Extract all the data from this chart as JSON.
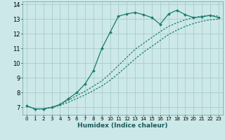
{
  "title": "",
  "xlabel": "Humidex (Indice chaleur)",
  "background_color": "#cce8e8",
  "grid_color": "#aacccc",
  "line_color": "#1a7a6e",
  "xlim": [
    -0.5,
    23.5
  ],
  "ylim": [
    6.5,
    14.2
  ],
  "yticks": [
    7,
    8,
    9,
    10,
    11,
    12,
    13,
    14
  ],
  "xticks": [
    0,
    1,
    2,
    3,
    4,
    5,
    6,
    7,
    8,
    9,
    10,
    11,
    12,
    13,
    14,
    15,
    16,
    17,
    18,
    19,
    20,
    21,
    22,
    23
  ],
  "series1_x": [
    0,
    1,
    2,
    3,
    4,
    5,
    6,
    7,
    8,
    9,
    10,
    11,
    12,
    13,
    14,
    15,
    16,
    17,
    18,
    19,
    20,
    21,
    22,
    23
  ],
  "series1_y": [
    7.1,
    6.9,
    6.9,
    7.0,
    7.2,
    7.6,
    8.0,
    8.6,
    9.5,
    11.0,
    12.1,
    13.2,
    13.35,
    13.45,
    13.3,
    13.1,
    12.65,
    13.35,
    13.6,
    13.3,
    13.1,
    13.15,
    13.25,
    13.1
  ],
  "series2_x": [
    0,
    1,
    2,
    3,
    4,
    5,
    6,
    7,
    8,
    9,
    10,
    11,
    12,
    13,
    14,
    15,
    16,
    17,
    18,
    19,
    20,
    21,
    22,
    23
  ],
  "series2_y": [
    7.1,
    6.9,
    6.9,
    7.0,
    7.2,
    7.5,
    7.8,
    8.1,
    8.45,
    8.8,
    9.3,
    9.85,
    10.4,
    10.95,
    11.35,
    11.75,
    12.15,
    12.5,
    12.75,
    12.95,
    13.1,
    13.2,
    13.25,
    13.2
  ],
  "series3_x": [
    0,
    1,
    2,
    3,
    4,
    5,
    6,
    7,
    8,
    9,
    10,
    11,
    12,
    13,
    14,
    15,
    16,
    17,
    18,
    19,
    20,
    21,
    22,
    23
  ],
  "series3_y": [
    7.1,
    6.9,
    6.9,
    7.0,
    7.15,
    7.35,
    7.6,
    7.85,
    8.15,
    8.45,
    8.85,
    9.3,
    9.8,
    10.3,
    10.75,
    11.15,
    11.55,
    11.95,
    12.25,
    12.5,
    12.7,
    12.85,
    12.95,
    13.0
  ]
}
